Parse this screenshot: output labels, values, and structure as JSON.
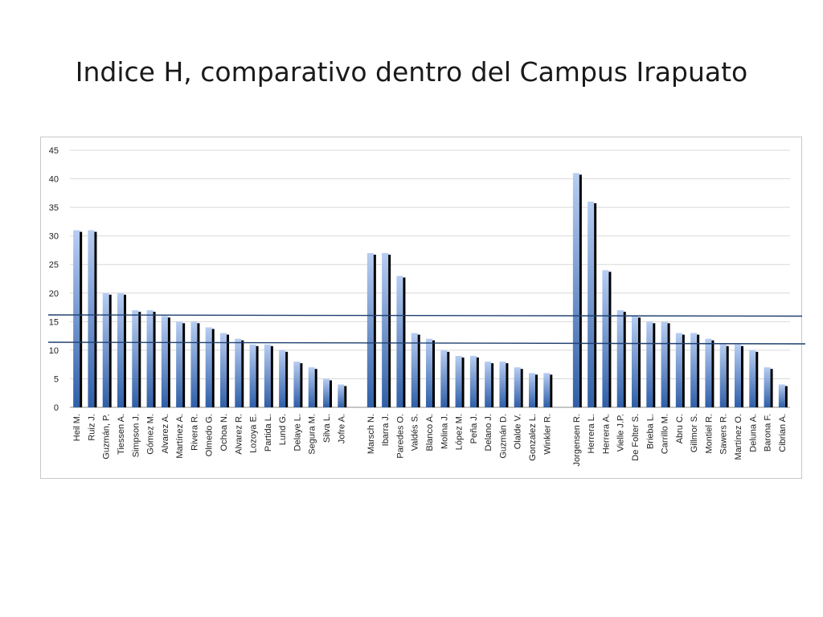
{
  "slide": {
    "title": "Indice H, comparativo dentro del Campus Irapuato"
  },
  "colors": {
    "bar_light": "#b7cdf2",
    "bar_dark": "#2f5fa8",
    "bar_shadow": "#000000",
    "grid": "#d9d9d9",
    "reference_line": "#1f3f6e",
    "axis": "#8c8c8c"
  },
  "chart_data": {
    "type": "bar",
    "title": "Indice H, comparativo dentro del Campus Irapuato",
    "xlabel": "",
    "ylabel": "",
    "ylim": [
      0,
      45
    ],
    "yticks": [
      0,
      5,
      10,
      15,
      20,
      25,
      30,
      35,
      40,
      45
    ],
    "grid": true,
    "legend": "none",
    "groups": [
      {
        "categories": [
          "Heil M.",
          "Ruiz J.",
          "Guzmán, P.",
          "Tiessen A.",
          "Simpson J.",
          "Gómez M.",
          "Alvarez A.",
          "Martínez A.",
          "Rivera R.",
          "Olmedo G.",
          "Ochoa N.",
          "Alvarez R.",
          "Lozoya E.",
          "Partida L.",
          "Lund G.",
          "Delaye L.",
          "Segura M.",
          "Silva L.",
          "Jofre A."
        ],
        "values": [
          31,
          31,
          20,
          20,
          17,
          17,
          16,
          15,
          15,
          14,
          13,
          12,
          11,
          11,
          10,
          8,
          7,
          5,
          4
        ]
      },
      {
        "categories": [
          "Marsch N.",
          "Ibarra J.",
          "Paredes O.",
          "Valdés S.",
          "Blanco A.",
          "Molina J.",
          "López M.",
          "Peña J.",
          "Delano J.",
          "Guzmán D.",
          "Olalde V.",
          "Gonzalez  L.",
          "Winkler R."
        ],
        "values": [
          27,
          27,
          23,
          13,
          12,
          10,
          9,
          9,
          8,
          8,
          7,
          6,
          6
        ]
      },
      {
        "categories": [
          "Jorgensen R.",
          "Herrera L.",
          "Herrera A.",
          "Vielle J.P.",
          "De Folter S.",
          "Brieba L.",
          "Carrillo M.",
          "Abru C.",
          "Gillmor S.",
          "Montiel R.",
          "Sawers R.",
          "Martínez O.",
          "Deluna A.",
          "Barona F.",
          "Cibrian A."
        ],
        "values": [
          41,
          36,
          24,
          17,
          16,
          15,
          15,
          13,
          13,
          12,
          11,
          11,
          10,
          7,
          4
        ]
      }
    ]
  }
}
